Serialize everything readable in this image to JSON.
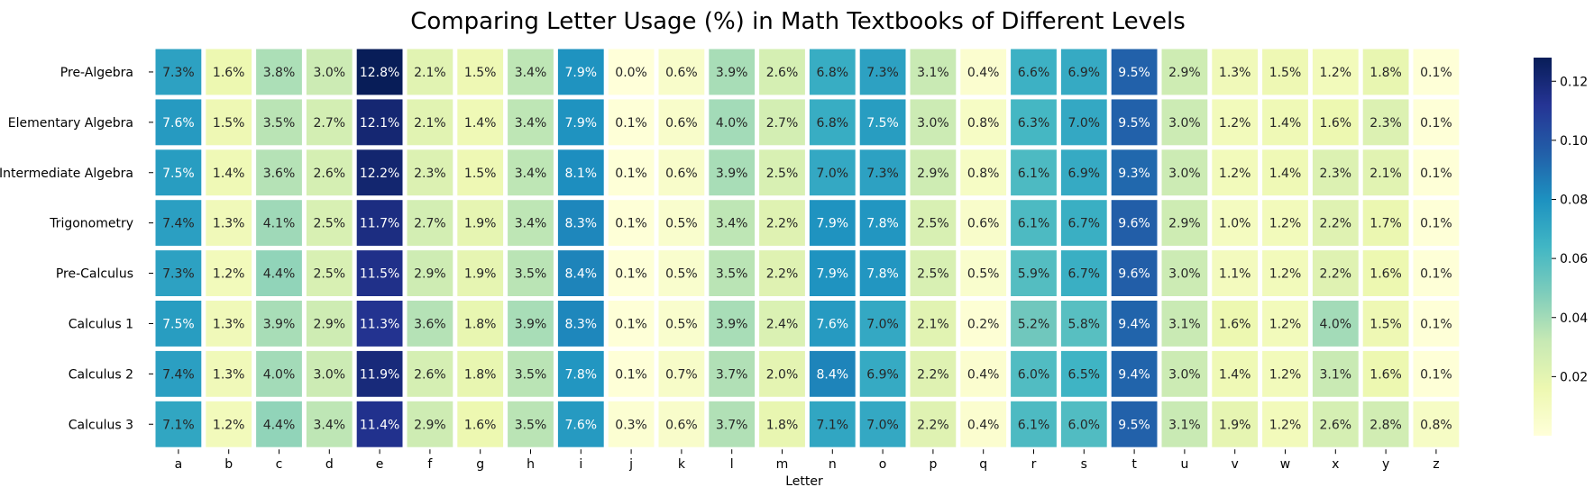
{
  "chart_data": {
    "type": "heatmap",
    "title": "Comparing Letter Usage (%) in Math Textbooks of Different Levels",
    "xlabel": "Letter",
    "ylabel": "",
    "columns": [
      "a",
      "b",
      "c",
      "d",
      "e",
      "f",
      "g",
      "h",
      "i",
      "j",
      "k",
      "l",
      "m",
      "n",
      "o",
      "p",
      "q",
      "r",
      "s",
      "t",
      "u",
      "v",
      "w",
      "x",
      "y",
      "z"
    ],
    "rows": [
      "Pre-Algebra",
      "Elementary Algebra",
      "Intermediate Algebra",
      "Trigonometry",
      "Pre-Calculus",
      "Calculus 1",
      "Calculus 2",
      "Calculus 3"
    ],
    "values": [
      [
        0.073,
        0.016,
        0.038,
        0.03,
        0.128,
        0.021,
        0.015,
        0.034,
        0.079,
        0.0,
        0.006,
        0.039,
        0.026,
        0.068,
        0.073,
        0.031,
        0.004,
        0.066,
        0.069,
        0.095,
        0.029,
        0.013,
        0.015,
        0.012,
        0.018,
        0.001
      ],
      [
        0.076,
        0.015,
        0.035,
        0.027,
        0.121,
        0.021,
        0.014,
        0.034,
        0.079,
        0.001,
        0.006,
        0.04,
        0.027,
        0.068,
        0.075,
        0.03,
        0.008,
        0.063,
        0.07,
        0.095,
        0.03,
        0.012,
        0.014,
        0.016,
        0.023,
        0.001
      ],
      [
        0.075,
        0.014,
        0.036,
        0.026,
        0.122,
        0.023,
        0.015,
        0.034,
        0.081,
        0.001,
        0.006,
        0.039,
        0.025,
        0.07,
        0.073,
        0.029,
        0.008,
        0.061,
        0.069,
        0.093,
        0.03,
        0.012,
        0.014,
        0.023,
        0.021,
        0.001
      ],
      [
        0.074,
        0.013,
        0.041,
        0.025,
        0.117,
        0.027,
        0.019,
        0.034,
        0.083,
        0.001,
        0.005,
        0.034,
        0.022,
        0.079,
        0.078,
        0.025,
        0.006,
        0.061,
        0.067,
        0.096,
        0.029,
        0.01,
        0.012,
        0.022,
        0.017,
        0.001
      ],
      [
        0.073,
        0.012,
        0.044,
        0.025,
        0.115,
        0.029,
        0.019,
        0.035,
        0.084,
        0.001,
        0.005,
        0.035,
        0.022,
        0.079,
        0.078,
        0.025,
        0.005,
        0.059,
        0.067,
        0.096,
        0.03,
        0.011,
        0.012,
        0.022,
        0.016,
        0.001
      ],
      [
        0.075,
        0.013,
        0.039,
        0.029,
        0.113,
        0.036,
        0.018,
        0.039,
        0.083,
        0.001,
        0.005,
        0.039,
        0.024,
        0.076,
        0.07,
        0.021,
        0.002,
        0.052,
        0.058,
        0.094,
        0.031,
        0.016,
        0.012,
        0.04,
        0.015,
        0.001
      ],
      [
        0.074,
        0.013,
        0.04,
        0.03,
        0.119,
        0.026,
        0.018,
        0.035,
        0.078,
        0.001,
        0.007,
        0.037,
        0.02,
        0.084,
        0.069,
        0.022,
        0.004,
        0.06,
        0.065,
        0.094,
        0.03,
        0.014,
        0.012,
        0.031,
        0.016,
        0.001
      ],
      [
        0.071,
        0.012,
        0.044,
        0.034,
        0.114,
        0.029,
        0.016,
        0.035,
        0.076,
        0.003,
        0.006,
        0.037,
        0.018,
        0.071,
        0.07,
        0.022,
        0.004,
        0.061,
        0.06,
        0.095,
        0.031,
        0.019,
        0.012,
        0.026,
        0.028,
        0.008
      ]
    ],
    "value_format": "percent, 1 decimal",
    "colormap": "YlGnBu",
    "vmin": 0.0,
    "vmax": 0.128,
    "colorbar_ticks": [
      "0.02",
      "0.04",
      "0.06",
      "0.08",
      "0.10",
      "0.12"
    ],
    "colorbar_tick_values": [
      0.02,
      0.04,
      0.06,
      0.08,
      0.1,
      0.12
    ]
  }
}
